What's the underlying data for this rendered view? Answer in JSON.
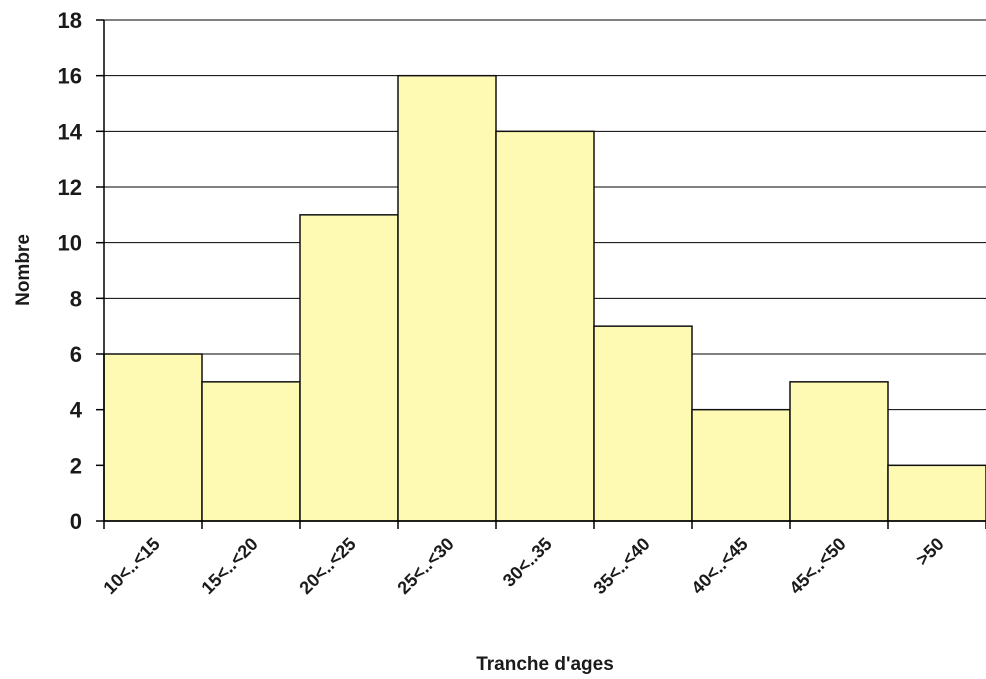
{
  "chart_data": {
    "type": "bar",
    "categories": [
      "10<..<15",
      "15<..<20",
      "20<..<25",
      "25<..<30",
      "30<..35",
      "35<..<40",
      "40<..<45",
      "45<..<50",
      ">50"
    ],
    "values": [
      6,
      5,
      11,
      16,
      14,
      7,
      4,
      5,
      2
    ],
    "xlabel": "Tranche d'ages",
    "ylabel": "Nombre",
    "ylim": [
      0,
      18
    ],
    "yticks": [
      0,
      2,
      4,
      6,
      8,
      10,
      12,
      14,
      16,
      18
    ],
    "grid": true,
    "bar_color": "#FFFAB3",
    "bar_edge_color": "#111111",
    "background": "#ffffff"
  }
}
